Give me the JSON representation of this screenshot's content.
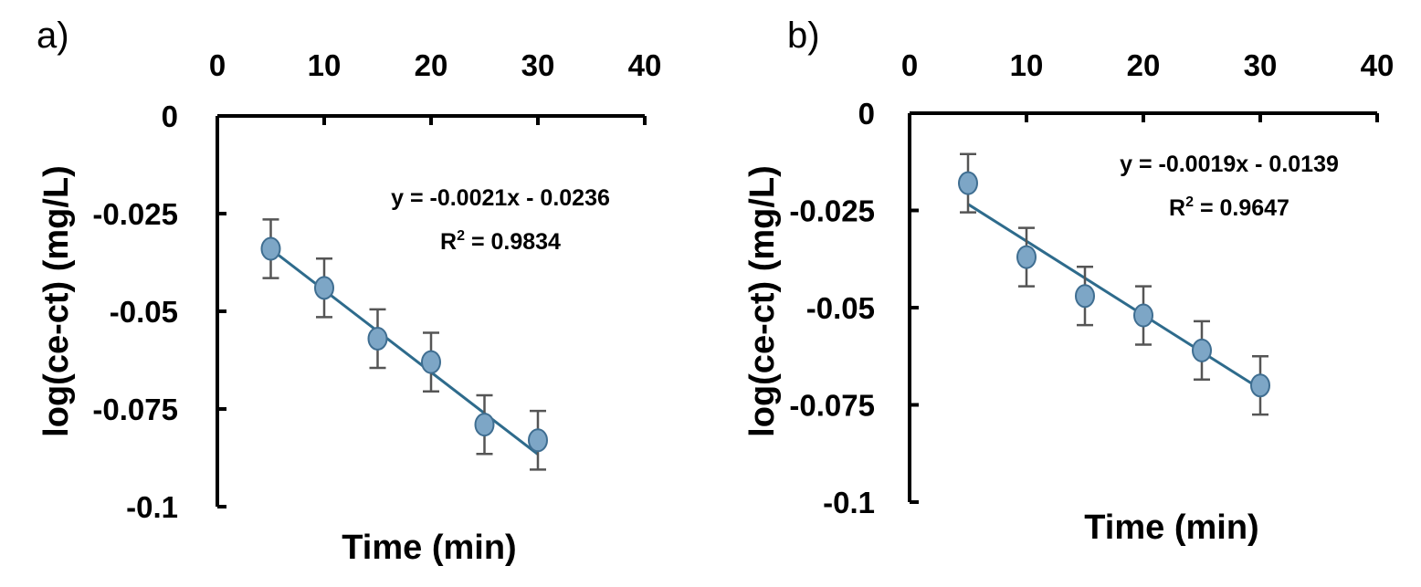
{
  "chart_data": [
    {
      "type": "scatter",
      "panel_label": "a)",
      "xlabel": "Time (min)",
      "ylabel": "log(ce-ct) (mg/L)",
      "xlim": [
        0,
        40
      ],
      "ylim": [
        -0.1,
        0
      ],
      "x_ticks": [
        "0",
        "10",
        "20",
        "30",
        "40"
      ],
      "y_ticks": [
        "0",
        "-0.025",
        "-0.05",
        "-0.075",
        "-0.1"
      ],
      "x_axis_position": "top",
      "grid": false,
      "series": [
        {
          "x": [
            5,
            10,
            15,
            20,
            25,
            30
          ],
          "y": [
            -0.034,
            -0.044,
            -0.057,
            -0.063,
            -0.079,
            -0.083
          ],
          "error": 0.0075,
          "marker_color": "#7da6c6"
        }
      ],
      "trendline": {
        "slope": -0.0021,
        "intercept": -0.0236,
        "color": "#2e6b8c"
      },
      "equation": "y = -0.0021x - 0.0236",
      "r2_label": "R",
      "r2_exponent": "2",
      "r2_value": " = 0.9834"
    },
    {
      "type": "scatter",
      "panel_label": "b)",
      "xlabel": "Time (min)",
      "ylabel": "log(ce-ct) (mg/L)",
      "xlim": [
        0,
        40
      ],
      "ylim": [
        -0.1,
        0
      ],
      "x_ticks": [
        "0",
        "10",
        "20",
        "30",
        "40"
      ],
      "y_ticks": [
        "0",
        "-0.025",
        "-0.05",
        "-0.075",
        "-0.1"
      ],
      "x_axis_position": "top",
      "grid": false,
      "series": [
        {
          "x": [
            5,
            10,
            15,
            20,
            25,
            30
          ],
          "y": [
            -0.018,
            -0.037,
            -0.047,
            -0.052,
            -0.061,
            -0.07
          ],
          "error": 0.0075,
          "marker_color": "#7da6c6"
        }
      ],
      "trendline": {
        "slope": -0.0019,
        "intercept": -0.0139,
        "color": "#2e6b8c"
      },
      "equation": "y = -0.0019x - 0.0139",
      "r2_label": "R",
      "r2_exponent": "2",
      "r2_value": " = 0.9647"
    }
  ]
}
